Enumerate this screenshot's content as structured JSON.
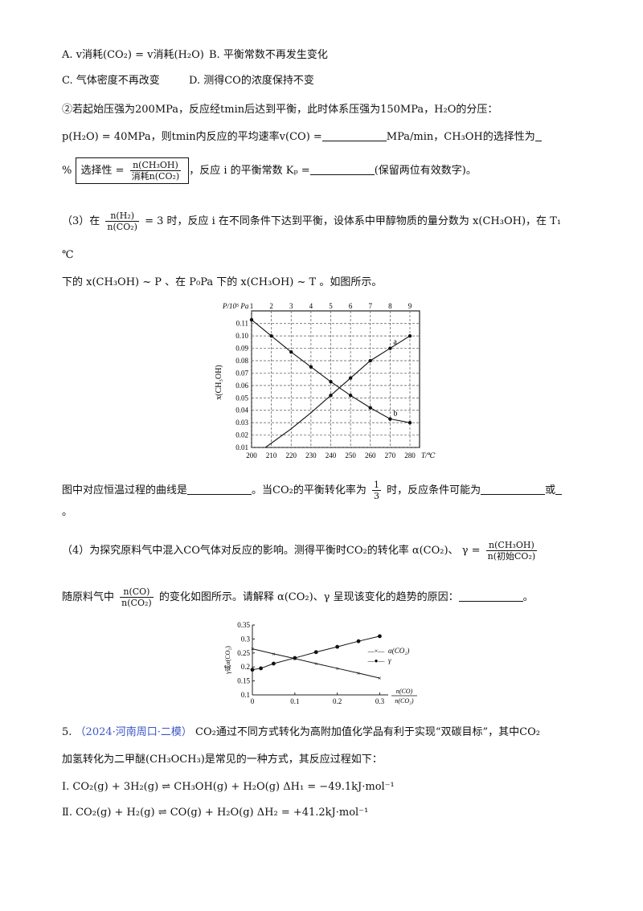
{
  "q_options": {
    "a": "A. v消耗(CO₂) = v消耗(H₂O)",
    "b": "B. 平衡常数不再发生变化",
    "c": "C. 气体密度不再改变",
    "d": "D. 测得CO的浓度保持不变"
  },
  "q2": {
    "line1": "②若起始压强为200MPa，反应经tmin后达到平衡，此时体系压强为150MPa，H₂O的分压：",
    "line2a": "p(H₂O) = 40MPa，则tmin内反应的平均速率v(CO) =",
    "line2b": "MPa/min，CH₃OH的选择性为",
    "line3_prefix": "%",
    "selectivity_label": "选择性 =",
    "selectivity_num": "n(CH₃OH)",
    "selectivity_den": "消耗n(CO₂)",
    "line3_mid": "，反应 i 的平衡常数 Kₚ =",
    "line3_end": "(保留两位有效数字)。"
  },
  "q3": {
    "label": "（3）在",
    "frac_num": "n(H₂)",
    "frac_den": "n(CO₂)",
    "after_frac": "= 3 时，反应 i 在不同条件下达到平衡，设体系中甲醇物质的量分数为 x(CH₃OH)，在 T₁",
    "unit_line": "℃",
    "line2": "下的 x(CH₃OH) ~ P 、在 P₀Pa 下的 x(CH₃OH) ~ T 。如图所示。",
    "question_a": "图中对应恒温过程的曲线是",
    "question_b": "。当CO₂的平衡转化率为",
    "third_num": "1",
    "third_den": "3",
    "question_c": "时，反应条件可能为",
    "question_d": "或",
    "end_mark": "。"
  },
  "q4": {
    "line1a": "（4）为探究原料气中混入CO气体对反应的影响。测得平衡时CO₂的转化率 α(CO₂)、",
    "gamma_eq": "γ =",
    "gamma_num": "n(CH₃OH)",
    "gamma_den": "n(初始CO₂)",
    "line2a": "随原料气中",
    "frac_num": "n(CO)",
    "frac_den": "n(CO₂)",
    "line2b": "的变化如图所示。请解释 α(CO₂)、γ 呈现该变化的趋势的原因：",
    "end_mark": "。"
  },
  "q5": {
    "number": "5.",
    "source": "（2024·河南周口·二模）",
    "line1": "CO₂通过不同方式转化为高附加值化学品有利于实现“双碳目标”，其中CO₂",
    "line2": "加氢转化为二甲醚(CH₃OCH₃)是常见的一种方式，其反应过程如下：",
    "r1_label": "Ⅰ.",
    "r1": "CO₂(g) + 3H₂(g) ⇌ CH₃OH(g) + H₂O(g)   ΔH₁ = −49.1kJ·mol⁻¹",
    "r2_label": "Ⅱ.",
    "r2": "CO₂(g) + H₂(g) ⇌ CO(g) + H₂O(g)   ΔH₂ = +41.2kJ·mol⁻¹"
  },
  "chart_data": [
    {
      "type": "line",
      "ylabel": "x(CH₃OH)",
      "x_bottom_label": "T/℃",
      "x_top_label": "P/10⁵ Pa",
      "x_top_ticks": [
        "1",
        "2",
        "3",
        "4",
        "5",
        "6",
        "7",
        "8",
        "9"
      ],
      "x_bottom_ticks": [
        "200",
        "210",
        "220",
        "230",
        "240",
        "250",
        "260",
        "270",
        "280"
      ],
      "y_ticks": [
        "0.01",
        "0.02",
        "0.03",
        "0.04",
        "0.05",
        "0.06",
        "0.07",
        "0.08",
        "0.09",
        "0.10",
        "0.11"
      ],
      "ylim": [
        0.01,
        0.115
      ],
      "grid": true,
      "series": [
        {
          "name": "a",
          "x_axis": "P/10⁵ Pa",
          "x": [
            1.7,
            3,
            4,
            5,
            6,
            7,
            8,
            9
          ],
          "y": [
            0.01,
            0.025,
            0.038,
            0.052,
            0.066,
            0.08,
            0.09,
            0.1
          ]
        },
        {
          "name": "b",
          "x_axis": "T/℃",
          "x": [
            200,
            210,
            220,
            230,
            240,
            250,
            260,
            270,
            280
          ],
          "y": [
            0.113,
            0.1,
            0.087,
            0.075,
            0.063,
            0.052,
            0.042,
            0.033,
            0.03
          ]
        }
      ]
    },
    {
      "type": "line",
      "ylabel": "γ或α(CO₂)",
      "xlabel_num": "n(CO)",
      "xlabel_den": "n(CO₂)",
      "x_ticks": [
        "0",
        "0.1",
        "0.2",
        "0.3"
      ],
      "y_ticks": [
        "0.1",
        "0.15",
        "0.2",
        "0.25",
        "0.3",
        "0.35"
      ],
      "xlim": [
        0,
        0.32
      ],
      "ylim": [
        0.1,
        0.35
      ],
      "series": [
        {
          "name": "α(CO₂)",
          "marker": "x",
          "x": [
            0,
            0.05,
            0.1,
            0.15,
            0.2,
            0.25,
            0.3
          ],
          "y": [
            0.265,
            0.247,
            0.23,
            0.212,
            0.195,
            0.178,
            0.16
          ]
        },
        {
          "name": "γ",
          "marker": "dot",
          "x": [
            0,
            0.02,
            0.05,
            0.1,
            0.15,
            0.2,
            0.25,
            0.3
          ],
          "y": [
            0.19,
            0.195,
            0.212,
            0.232,
            0.253,
            0.272,
            0.292,
            0.31
          ]
        }
      ]
    }
  ]
}
